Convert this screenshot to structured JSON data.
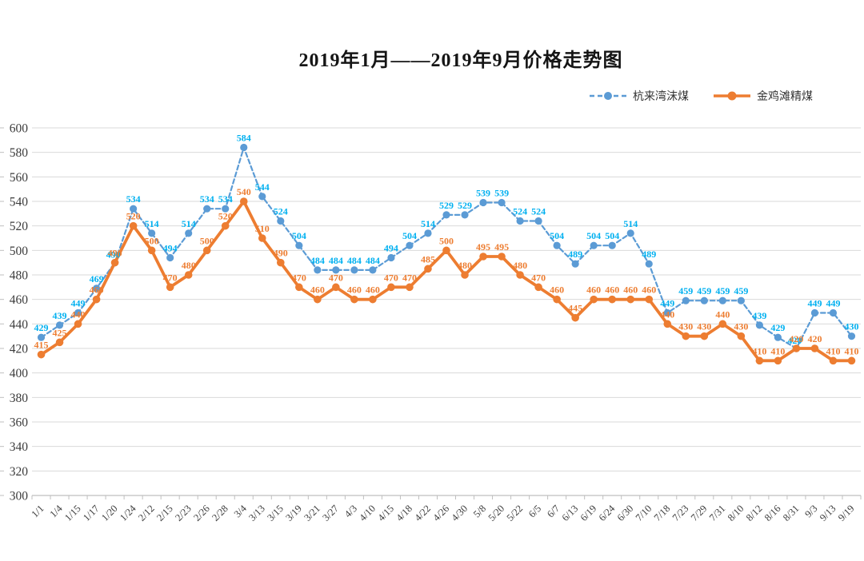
{
  "chart_data": {
    "type": "line",
    "title": "2019年1月——2019年9月价格走势图",
    "categories": [
      "1/1",
      "1/4",
      "1/15",
      "1/17",
      "1/20",
      "1/24",
      "2/12",
      "2/15",
      "2/23",
      "2/26",
      "2/28",
      "3/4",
      "3/13",
      "3/15",
      "3/19",
      "3/21",
      "3/27",
      "4/3",
      "4/10",
      "4/15",
      "4/18",
      "4/22",
      "4/26",
      "4/30",
      "5/8",
      "5/20",
      "5/22",
      "6/5",
      "6/7",
      "6/13",
      "6/19",
      "6/24",
      "6/30",
      "7/10",
      "7/18",
      "7/23",
      "7/29",
      "7/31",
      "8/10",
      "8/12",
      "8/16",
      "8/31",
      "9/3",
      "9/13",
      "9/19"
    ],
    "series": [
      {
        "name": "杭来湾沫煤",
        "style": "dashed",
        "line_color": "#5B9BD5",
        "label_color": "#00B0F0",
        "values": [
          429,
          439,
          449,
          469,
          490,
          534,
          514,
          494,
          514,
          534,
          534,
          584,
          544,
          524,
          504,
          484,
          484,
          484,
          484,
          494,
          504,
          514,
          529,
          529,
          539,
          539,
          524,
          524,
          504,
          489,
          504,
          504,
          514,
          489,
          449,
          459,
          459,
          459,
          459,
          439,
          429,
          420,
          449,
          449,
          430
        ]
      },
      {
        "name": "金鸡滩精煤",
        "style": "solid",
        "line_color": "#ED7D31",
        "label_color": "#ED7D31",
        "values": [
          415,
          425,
          440,
          460,
          490,
          520,
          500,
          470,
          480,
          500,
          520,
          540,
          510,
          490,
          470,
          460,
          470,
          460,
          460,
          470,
          470,
          485,
          500,
          480,
          495,
          495,
          480,
          470,
          460,
          445,
          460,
          460,
          460,
          460,
          440,
          430,
          430,
          440,
          430,
          410,
          410,
          420,
          420,
          410,
          410
        ]
      }
    ],
    "xlabel": "",
    "ylabel": "",
    "ylim": [
      300,
      600
    ],
    "ytick_step": 20,
    "grid": true,
    "legend_position": "top-right",
    "colors": {
      "gridline": "#D9D9D9",
      "axis_line": "#BFBFBF",
      "axis_tick_label": "#3B3B3B"
    }
  }
}
